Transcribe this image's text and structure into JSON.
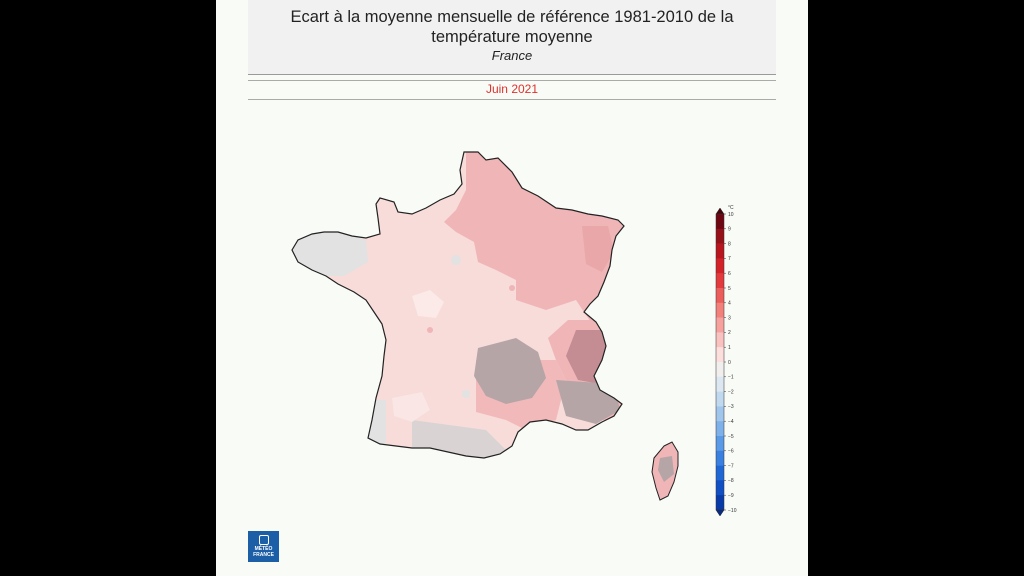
{
  "title": {
    "line1": "Ecart à la moyenne mensuelle de référence 1981-2010 de la",
    "line2": "température moyenne",
    "region": "France"
  },
  "period": "Juin 2021",
  "logo": {
    "line1": "MÉTÉO",
    "line2": "FRANCE"
  },
  "colorbar": {
    "unit": "°C",
    "ticks": [
      10,
      9,
      8,
      7,
      6,
      5,
      4,
      3,
      2,
      1,
      0,
      -1,
      -2,
      -3,
      -4,
      -5,
      -6,
      -7,
      -8,
      -9,
      -10
    ],
    "colors": [
      "#6e0711",
      "#961019",
      "#b8151f",
      "#d42229",
      "#e33b3d",
      "#ec5e5c",
      "#f2817c",
      "#f6a19e",
      "#f9c2c0",
      "#fcdedd",
      "#f1eeee",
      "#dde7f2",
      "#c1d9ef",
      "#a0c6ec",
      "#7eb1ea",
      "#5b9ae6",
      "#3a80e0",
      "#2067d6",
      "#114fc4",
      "#083aa8"
    ],
    "range": [
      -10,
      10
    ]
  },
  "colors": {
    "map_base": "#f7dcd9",
    "warm": "#f0b5b6",
    "cool": "#e2e2e2",
    "relief": "#b5a5a7",
    "strong": "#c48d94",
    "border": "#222222",
    "period_text": "#e0312b",
    "logo_bg": "#1c5fa6"
  }
}
